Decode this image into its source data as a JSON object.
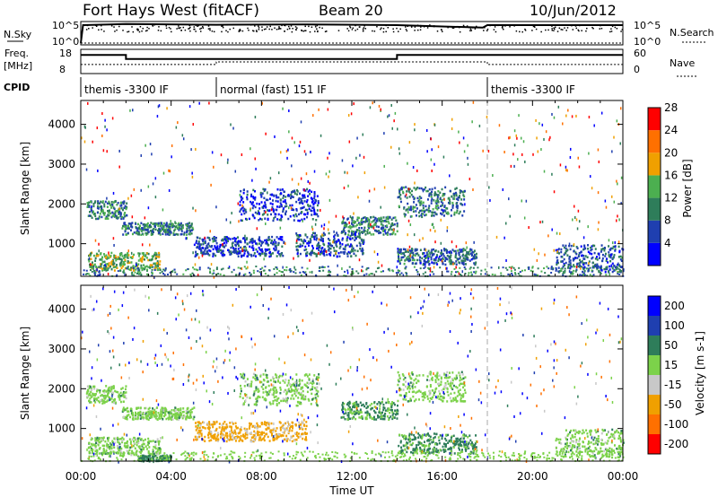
{
  "header": {
    "radar": "Fort Hays West (fitACF)",
    "beam": "Beam 20",
    "date": "10/Jun/2012"
  },
  "strip_labels": {
    "nsky": "N.Sky",
    "nsearch": "N.Search",
    "freq_line1": "Freq.",
    "freq_line2": "[MHz]",
    "nave": "Nave",
    "cpid": "CPID",
    "nsky_ticks": [
      "10^5",
      "10^0"
    ],
    "nsearch_ticks": [
      "10^5",
      "10^0"
    ],
    "freq_ticks": [
      "18",
      "8"
    ],
    "nave_ticks": [
      "60",
      "0"
    ]
  },
  "cpid_segments": [
    {
      "label": "themis -3300 IF",
      "start_hour": 0
    },
    {
      "label": "normal (fast) 151 IF",
      "start_hour": 6
    },
    {
      "label": "themis -3300 IF",
      "start_hour": 18
    }
  ],
  "colorbars": {
    "power": {
      "label": "Power [dB]",
      "ticks": [
        "4",
        "8",
        "12",
        "16",
        "20",
        "24",
        "28"
      ],
      "colors": [
        "#0000ff",
        "#1f3fb0",
        "#2e7d5a",
        "#4caf50",
        "#f0a000",
        "#ff7000",
        "#ff0000"
      ]
    },
    "velocity": {
      "label": "Velocity [m s-1]",
      "ticks": [
        "200",
        "100",
        "50",
        "15",
        "-15",
        "-50",
        "-100",
        "-200"
      ],
      "colors": [
        "#0000ff",
        "#1f3fb0",
        "#2e7d5a",
        "#7cd24a",
        "#c8c8c8",
        "#f0a000",
        "#ff7000",
        "#ff0000"
      ]
    }
  },
  "axes": {
    "y_label": "Slant Range [km]",
    "y_ticks": [
      "1000",
      "2000",
      "3000",
      "4000"
    ],
    "x_ticks": [
      "00:00",
      "04:00",
      "08:00",
      "12:00",
      "16:00",
      "20:00",
      "00:00"
    ],
    "x_label": "Time UT"
  },
  "chart_data": [
    {
      "type": "line",
      "title": "N.Sky / N.Search",
      "x_range_hours": [
        0,
        24
      ],
      "series": [
        {
          "name": "N.Sky",
          "x": [
            0,
            0.1,
            2,
            6,
            10,
            14,
            17.8,
            18,
            24
          ],
          "y_log10": [
            0,
            5,
            5.3,
            5.1,
            5.2,
            5.0,
            4.3,
            5.0,
            5.0
          ]
        },
        {
          "name": "N.Search",
          "x": [
            0,
            24
          ],
          "y_log10": [
            0,
            0
          ]
        }
      ]
    },
    {
      "type": "line",
      "title": "Freq / Nave",
      "x_range_hours": [
        0,
        24
      ],
      "series": [
        {
          "name": "Freq. [MHz]",
          "x": [
            0,
            2,
            2,
            14,
            14,
            24
          ],
          "y": [
            16.5,
            16.5,
            14.5,
            14.5,
            16.5,
            16.5
          ]
        },
        {
          "name": "Nave",
          "x": [
            0,
            6,
            6,
            18,
            18,
            24
          ],
          "y": [
            22,
            22,
            30,
            30,
            22,
            22
          ]
        }
      ]
    },
    {
      "type": "heatmap",
      "title": "Power [dB]",
      "xlabel": "Time UT",
      "ylabel": "Slant Range [km]",
      "x_range_hours": [
        0,
        24
      ],
      "ylim": [
        180,
        4600
      ],
      "clim": [
        0,
        30
      ],
      "regions": [
        {
          "t0": 0.2,
          "t1": 2.0,
          "r0": 1650,
          "r1": 2100,
          "power": 10
        },
        {
          "t0": 1.8,
          "t1": 5.0,
          "r0": 1250,
          "r1": 1550,
          "power": 10
        },
        {
          "t0": 0.3,
          "t1": 3.5,
          "r0": 350,
          "r1": 800,
          "power": 14
        },
        {
          "t0": 5.0,
          "t1": 9.0,
          "r0": 700,
          "r1": 1200,
          "power": 6
        },
        {
          "t0": 7.0,
          "t1": 10.5,
          "r0": 1600,
          "r1": 2400,
          "power": 5
        },
        {
          "t0": 9.5,
          "t1": 12.5,
          "r0": 700,
          "r1": 1300,
          "power": 7
        },
        {
          "t0": 11.5,
          "t1": 14.0,
          "r0": 1250,
          "r1": 1700,
          "power": 10
        },
        {
          "t0": 14.0,
          "t1": 17.0,
          "r0": 1700,
          "r1": 2450,
          "power": 9
        },
        {
          "t0": 14.0,
          "t1": 17.5,
          "r0": 500,
          "r1": 900,
          "power": 8
        },
        {
          "t0": 21.0,
          "t1": 24.0,
          "r0": 300,
          "r1": 1000,
          "power": 7
        }
      ]
    },
    {
      "type": "heatmap",
      "title": "Velocity [m s-1]",
      "xlabel": "Time UT",
      "ylabel": "Slant Range [km]",
      "x_range_hours": [
        0,
        24
      ],
      "ylim": [
        180,
        4600
      ],
      "clim": [
        -200,
        200
      ],
      "regions": [
        {
          "t0": 0.2,
          "t1": 2.0,
          "r0": 1650,
          "r1": 2100,
          "velocity": 0
        },
        {
          "t0": 1.8,
          "t1": 5.0,
          "r0": 1250,
          "r1": 1550,
          "velocity": 0
        },
        {
          "t0": 0.3,
          "t1": 3.5,
          "r0": 350,
          "r1": 800,
          "velocity": 0
        },
        {
          "t0": 2.5,
          "t1": 4.0,
          "r0": 200,
          "r1": 350,
          "velocity": 30
        },
        {
          "t0": 5.0,
          "t1": 10.0,
          "r0": 700,
          "r1": 1200,
          "velocity": -60
        },
        {
          "t0": 7.0,
          "t1": 10.5,
          "r0": 1600,
          "r1": 2400,
          "velocity": 0
        },
        {
          "t0": 11.5,
          "t1": 14.0,
          "r0": 1250,
          "r1": 1700,
          "velocity": 20
        },
        {
          "t0": 14.0,
          "t1": 17.0,
          "r0": 1700,
          "r1": 2450,
          "velocity": 0
        },
        {
          "t0": 14.0,
          "t1": 17.5,
          "r0": 400,
          "r1": 900,
          "velocity": 25
        },
        {
          "t0": 21.0,
          "t1": 24.0,
          "r0": 300,
          "r1": 1000,
          "velocity": 0
        }
      ]
    }
  ]
}
